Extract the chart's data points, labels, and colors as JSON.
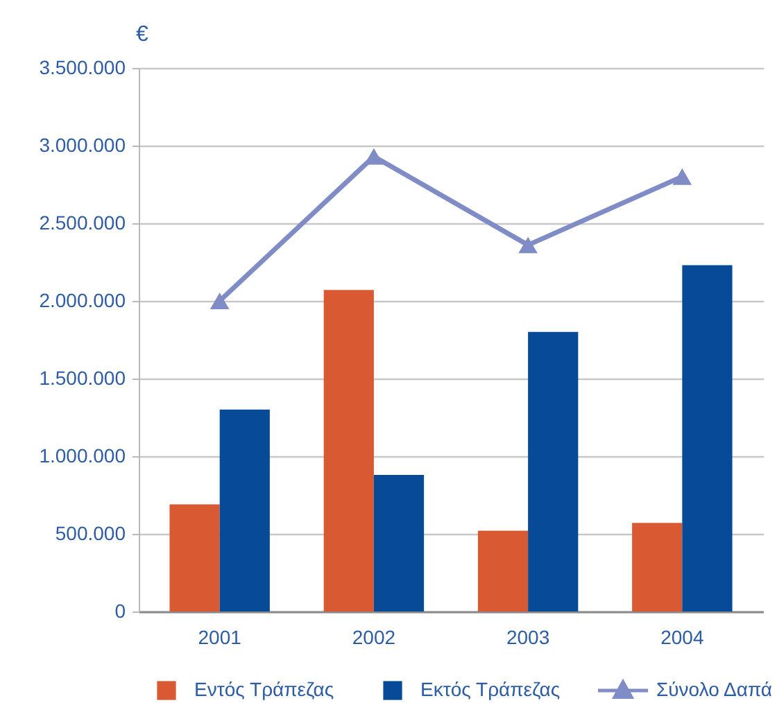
{
  "chart_data": {
    "type": "bar",
    "ylabel": "€",
    "categories": [
      "2001",
      "2002",
      "2003",
      "2004"
    ],
    "series": [
      {
        "name": "Εντός Τράπεζας",
        "color": "#d95933",
        "values": [
          690000,
          2070000,
          520000,
          570000
        ]
      },
      {
        "name": "Εκτός Τράπεζας",
        "color": "#074a97",
        "values": [
          1300000,
          880000,
          1800000,
          2230000
        ]
      },
      {
        "name": "Σύνολο Δαπά",
        "type": "line",
        "color": "#7f8cc6",
        "values": [
          2000000,
          2930000,
          2360000,
          2800000
        ]
      }
    ],
    "ylim": [
      0,
      3500000
    ],
    "yticks": [
      0,
      {
        "value": 500000,
        "label": "500.000"
      },
      {
        "value": 1000000,
        "label": "1.000.000"
      },
      {
        "value": 1500000,
        "label": "1.500.000"
      },
      {
        "value": 2000000,
        "label": "2.000.000"
      },
      {
        "value": 2500000,
        "label": "2.500.000"
      },
      {
        "value": 3000000,
        "label": "3.000.000"
      },
      {
        "value": 3500000,
        "label": "3.500.000"
      }
    ],
    "grid": "y",
    "legend": "bottom",
    "marker": "triangle"
  }
}
